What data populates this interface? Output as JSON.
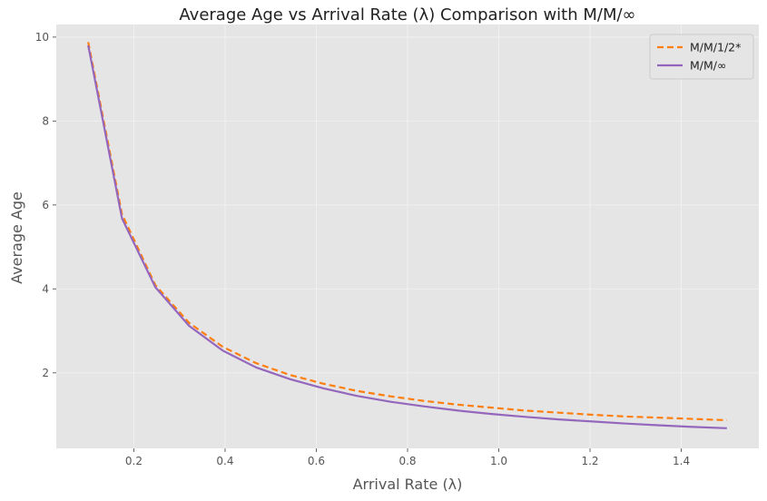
{
  "chart_data": {
    "type": "line",
    "title": "Average Age vs Arrival Rate (λ) Comparison with M/M/∞",
    "xlabel": "Arrival Rate (λ)",
    "ylabel": "Average Age",
    "xlim": [
      0.03,
      1.57
    ],
    "ylim": [
      0.2,
      10.3
    ],
    "xticks": [
      0.2,
      0.4,
      0.6,
      0.8,
      1.0,
      1.2,
      1.4
    ],
    "xtick_labels": [
      "0.2",
      "0.4",
      "0.6",
      "0.8",
      "1.0",
      "1.2",
      "1.4"
    ],
    "yticks": [
      2,
      4,
      6,
      8,
      10
    ],
    "ytick_labels": [
      "2",
      "4",
      "6",
      "8",
      "10"
    ],
    "grid": true,
    "legend_position": "top-right",
    "x": [
      0.1,
      0.174,
      0.247,
      0.321,
      0.395,
      0.468,
      0.542,
      0.616,
      0.689,
      0.763,
      0.837,
      0.911,
      0.984,
      1.058,
      1.132,
      1.205,
      1.279,
      1.353,
      1.426,
      1.5
    ],
    "series": [
      {
        "name": "M/M/1/2*",
        "color": "#ff7f0e",
        "style": "dashed",
        "values": [
          9.88,
          5.78,
          4.09,
          3.19,
          2.62,
          2.23,
          1.95,
          1.74,
          1.57,
          1.44,
          1.33,
          1.24,
          1.17,
          1.1,
          1.05,
          1.0,
          0.96,
          0.93,
          0.9,
          0.87
        ]
      },
      {
        "name": "M/M/∞",
        "color": "#9467bd",
        "style": "solid",
        "values": [
          9.8,
          5.68,
          4.04,
          3.12,
          2.53,
          2.13,
          1.85,
          1.63,
          1.45,
          1.31,
          1.2,
          1.1,
          1.02,
          0.95,
          0.89,
          0.84,
          0.79,
          0.75,
          0.71,
          0.68
        ]
      }
    ]
  },
  "colors": {
    "plot_background": "#e5e5e5",
    "grid": "#f2f2f2"
  }
}
